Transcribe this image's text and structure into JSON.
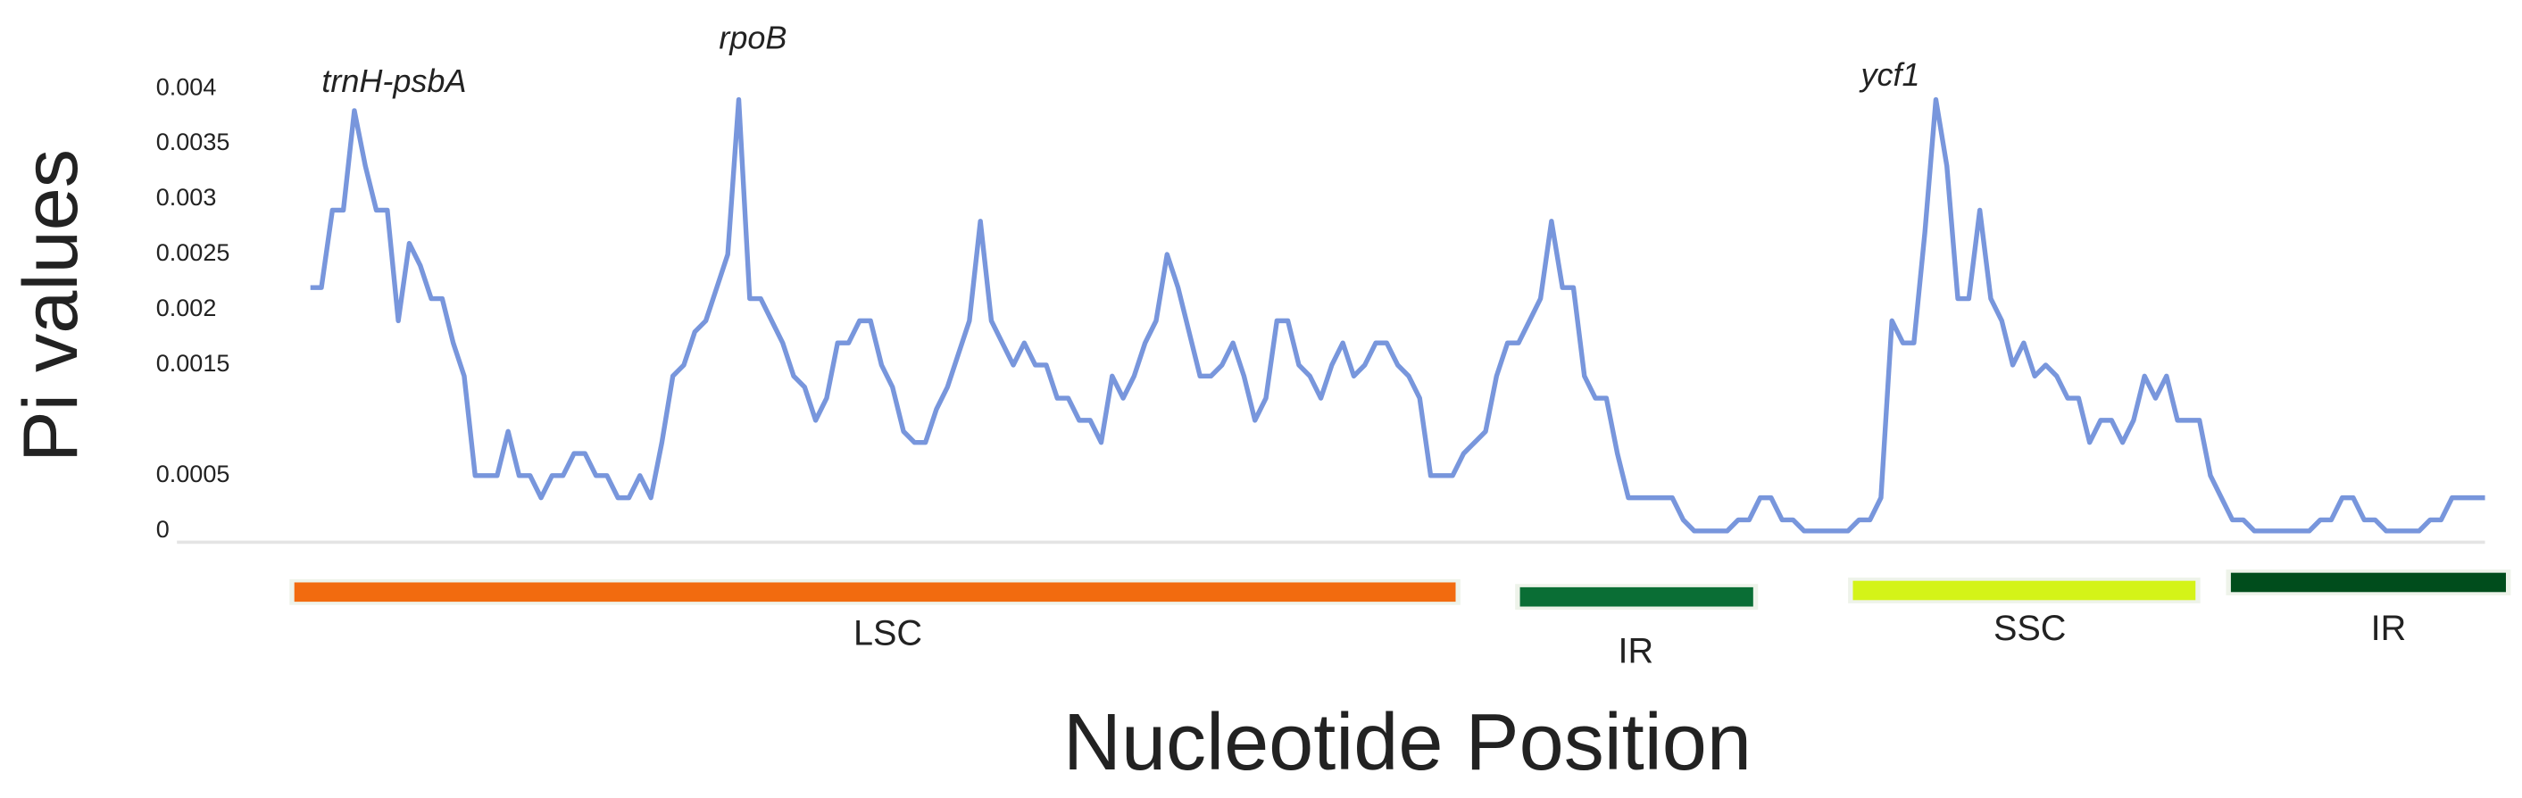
{
  "chart_data": {
    "type": "line",
    "y_label": "Pi values",
    "x_label": "Nucleotide Position",
    "ylim": [
      0,
      0.004
    ],
    "yticks": [
      0,
      0.0005,
      0.0015,
      0.002,
      0.0025,
      0.003,
      0.0035,
      0.004
    ],
    "color": "#7896dc",
    "values": [
      0.0022,
      0.0022,
      0.0029,
      0.0029,
      0.0038,
      0.0033,
      0.0029,
      0.0029,
      0.0019,
      0.0026,
      0.0024,
      0.0021,
      0.0021,
      0.0017,
      0.0014,
      0.0005,
      0.0005,
      0.0005,
      0.0009,
      0.0005,
      0.0005,
      0.0003,
      0.0005,
      0.0005,
      0.0007,
      0.0007,
      0.0005,
      0.0005,
      0.0003,
      0.0003,
      0.0005,
      0.0003,
      0.0008,
      0.0014,
      0.0015,
      0.0018,
      0.0019,
      0.0022,
      0.0025,
      0.0039,
      0.0021,
      0.0021,
      0.0019,
      0.0017,
      0.0014,
      0.0013,
      0.001,
      0.0012,
      0.0017,
      0.0017,
      0.0019,
      0.0019,
      0.0015,
      0.0013,
      0.0009,
      0.0008,
      0.0008,
      0.0011,
      0.0013,
      0.0016,
      0.0019,
      0.0028,
      0.0019,
      0.0017,
      0.0015,
      0.0017,
      0.0015,
      0.0015,
      0.0012,
      0.0012,
      0.001,
      0.001,
      0.0008,
      0.0014,
      0.0012,
      0.0014,
      0.0017,
      0.0019,
      0.0025,
      0.0022,
      0.0018,
      0.0014,
      0.0014,
      0.0015,
      0.0017,
      0.0014,
      0.001,
      0.0012,
      0.0019,
      0.0019,
      0.0015,
      0.0014,
      0.0012,
      0.0015,
      0.0017,
      0.0014,
      0.0015,
      0.0017,
      0.0017,
      0.0015,
      0.0014,
      0.0012,
      0.0005,
      0.0005,
      0.0005,
      0.0007,
      0.0008,
      0.0009,
      0.0014,
      0.0017,
      0.0017,
      0.0019,
      0.0021,
      0.0028,
      0.0022,
      0.0022,
      0.0014,
      0.0012,
      0.0012,
      0.0007,
      0.0003,
      0.0003,
      0.0003,
      0.0003,
      0.0003,
      0.0001,
      0,
      0,
      0,
      0,
      0.0001,
      0.0001,
      0.0003,
      0.0003,
      0.0001,
      0.0001,
      0,
      0,
      0,
      0,
      0,
      0.0001,
      0.0001,
      0.0003,
      0.0019,
      0.0017,
      0.0017,
      0.0027,
      0.0039,
      0.0033,
      0.0021,
      0.0021,
      0.0029,
      0.0021,
      0.0019,
      0.0015,
      0.0017,
      0.0014,
      0.0015,
      0.0014,
      0.0012,
      0.0012,
      0.0008,
      0.001,
      0.001,
      0.0008,
      0.001,
      0.0014,
      0.0012,
      0.0014,
      0.001,
      0.001,
      0.001,
      0.0005,
      0.0003,
      0.0001,
      0.0001,
      0,
      0,
      0,
      0,
      0,
      0,
      0.0001,
      0.0001,
      0.0003,
      0.0003,
      0.0001,
      0.0001,
      0,
      0,
      0,
      0,
      0.0001,
      0.0001,
      0.0003,
      0.0003,
      0.0003,
      0.0003
    ],
    "annotations": [
      "trnH-psbA",
      "rpoB",
      "ycf1"
    ],
    "regions": [
      {
        "label": "LSC",
        "color": "#f26b0f"
      },
      {
        "label": "IR",
        "color": "#0a6e35"
      },
      {
        "label": "SSC",
        "color": "#d4f318"
      },
      {
        "label": "IR",
        "color": "#004d1c"
      }
    ]
  }
}
